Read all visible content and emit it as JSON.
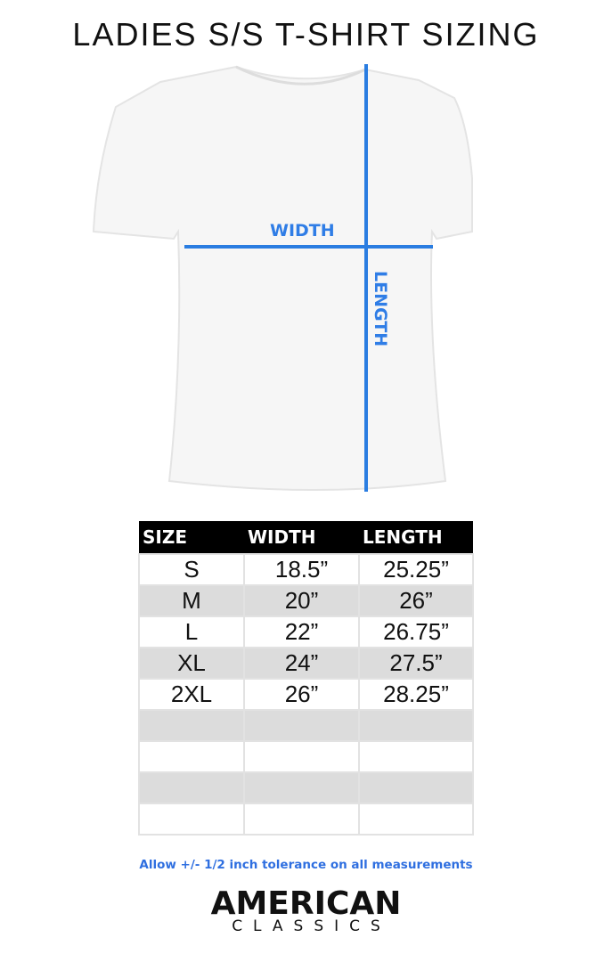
{
  "title": "LADIES S/S T-SHIRT SIZING",
  "diagram": {
    "width_label": "WIDTH",
    "length_label": "LENGTH",
    "line_color": "#2a7de1"
  },
  "table": {
    "headers": [
      "SIZE",
      "WIDTH",
      "LENGTH"
    ],
    "rows": [
      [
        "S",
        "18.5”",
        "25.25”"
      ],
      [
        "M",
        "20”",
        "26”"
      ],
      [
        "L",
        "22”",
        "26.75”"
      ],
      [
        "XL",
        "24”",
        "27.5”"
      ],
      [
        "2XL",
        "26”",
        "28.25”"
      ],
      [
        "",
        "",
        ""
      ],
      [
        "",
        "",
        ""
      ],
      [
        "",
        "",
        ""
      ],
      [
        "",
        "",
        ""
      ]
    ]
  },
  "note": "Allow +/- 1/2 inch tolerance on all measurements",
  "logo": {
    "line1": "AMERICAN",
    "line2": "CLASSICS"
  }
}
